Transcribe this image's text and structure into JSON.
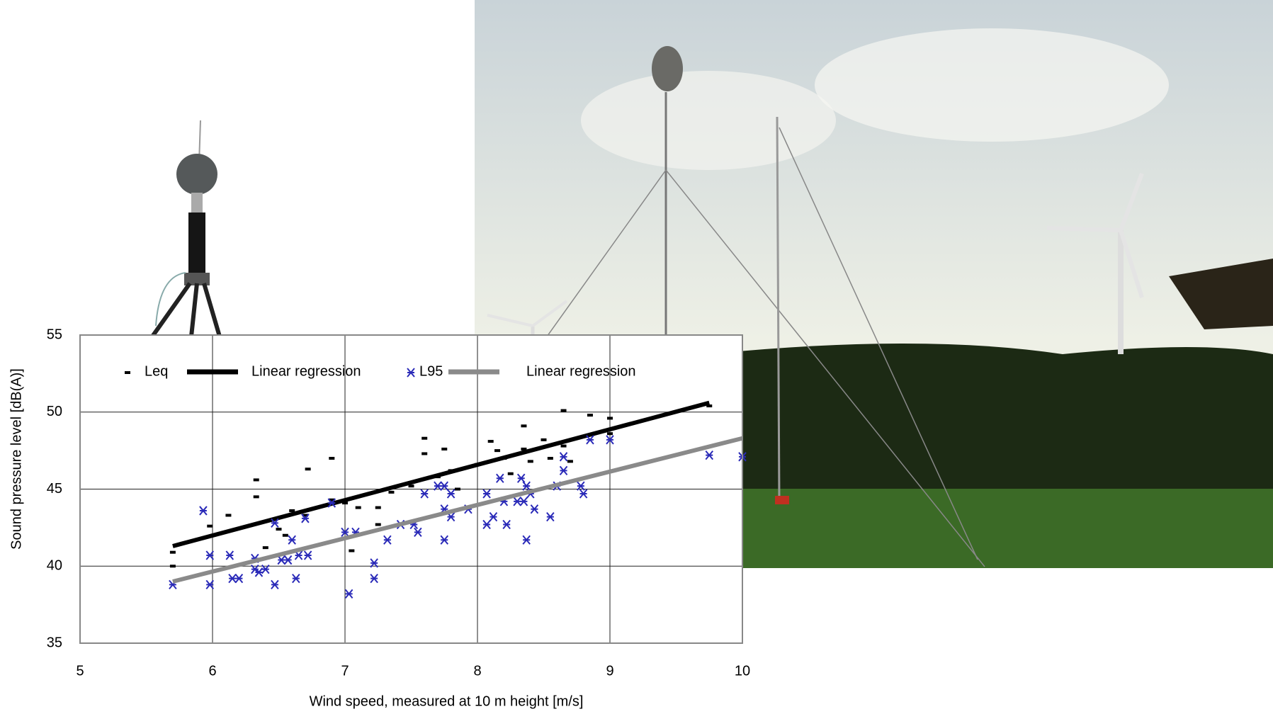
{
  "chart_data": {
    "type": "scatter",
    "x_label": "Wind speed, measured at 10 m height [m/s]",
    "y_label": "Sound pressure level [dB(A)]",
    "xlim": [
      5,
      10
    ],
    "xticks": [
      5,
      6,
      7,
      8,
      9,
      10
    ],
    "ylim": [
      35,
      55
    ],
    "yticks": [
      35,
      40,
      45,
      50,
      55
    ],
    "grid": true,
    "series": [
      {
        "name": "Leq",
        "color": "#000000",
        "marker": "dash",
        "x": [
          5.7,
          5.7,
          5.98,
          6.12,
          6.33,
          6.33,
          6.4,
          6.5,
          6.55,
          6.6,
          6.7,
          6.72,
          6.9,
          6.9,
          7.0,
          7.05,
          7.1,
          7.25,
          7.25,
          7.35,
          7.5,
          7.6,
          7.6,
          7.7,
          7.75,
          7.8,
          7.85,
          8.0,
          8.1,
          8.15,
          8.2,
          8.25,
          8.35,
          8.35,
          8.4,
          8.5,
          8.55,
          8.65,
          8.65,
          8.7,
          8.85,
          9.0,
          9.0,
          9.75
        ],
        "values": [
          40.9,
          40.0,
          42.6,
          43.3,
          45.6,
          44.5,
          41.2,
          42.4,
          42.0,
          43.6,
          43.3,
          46.3,
          47.0,
          44.3,
          44.1,
          41.0,
          43.8,
          43.8,
          42.7,
          44.8,
          45.2,
          48.3,
          47.3,
          45.8,
          47.6,
          46.2,
          45.0,
          46.6,
          48.1,
          47.5,
          47.0,
          46.0,
          49.1,
          47.6,
          46.8,
          48.2,
          47.0,
          47.8,
          50.1,
          46.8,
          49.8,
          49.6,
          48.6,
          50.4
        ]
      },
      {
        "name": "Linear regression",
        "color": "#000000",
        "marker": "line",
        "x": [
          5.7,
          9.75
        ],
        "values": [
          41.3,
          50.6
        ]
      },
      {
        "name": "L95",
        "color": "#2a2ab8",
        "marker": "x",
        "x": [
          5.7,
          5.93,
          5.98,
          5.98,
          6.13,
          6.15,
          6.2,
          6.32,
          6.32,
          6.35,
          6.4,
          6.47,
          6.47,
          6.52,
          6.57,
          6.6,
          6.63,
          6.65,
          6.7,
          6.72,
          6.9,
          7.0,
          7.03,
          7.08,
          7.22,
          7.22,
          7.32,
          7.42,
          7.52,
          7.55,
          7.6,
          7.7,
          7.75,
          7.75,
          7.75,
          7.8,
          7.8,
          7.93,
          8.07,
          8.07,
          8.12,
          8.17,
          8.2,
          8.22,
          8.3,
          8.33,
          8.35,
          8.37,
          8.37,
          8.4,
          8.43,
          8.55,
          8.6,
          8.65,
          8.65,
          8.78,
          8.8,
          8.85,
          9.0,
          9.75,
          10.0
        ],
        "values": [
          38.8,
          43.6,
          40.7,
          38.8,
          40.7,
          39.2,
          39.2,
          40.5,
          39.8,
          39.6,
          39.8,
          38.8,
          42.8,
          40.4,
          40.4,
          41.7,
          39.2,
          40.7,
          43.1,
          40.7,
          44.1,
          42.2,
          38.2,
          42.2,
          40.2,
          39.2,
          41.7,
          42.7,
          42.7,
          42.2,
          44.7,
          45.2,
          45.2,
          43.7,
          41.7,
          44.7,
          43.2,
          43.7,
          44.7,
          42.7,
          43.2,
          45.7,
          44.2,
          42.7,
          44.2,
          45.7,
          44.2,
          45.2,
          41.7,
          44.7,
          43.7,
          43.2,
          45.2,
          47.1,
          46.2,
          45.2,
          44.7,
          48.2,
          48.2,
          47.2,
          47.1
        ]
      },
      {
        "name": "Linear regression",
        "color": "#8a8a8a",
        "marker": "line",
        "x": [
          5.7,
          10.0
        ],
        "values": [
          39.0,
          48.3
        ]
      }
    ]
  }
}
